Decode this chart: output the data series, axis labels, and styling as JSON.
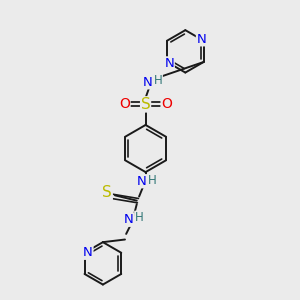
{
  "bg_color": "#ebebeb",
  "bond_color": "#1a1a1a",
  "bond_width": 1.4,
  "atom_colors": {
    "N": "#0000ee",
    "S": "#bbbb00",
    "O": "#ee0000",
    "H": "#337777",
    "C": "#1a1a1a"
  },
  "font_size": 8.5,
  "fig_size": [
    3.0,
    3.0
  ],
  "dpi": 100,
  "xlim": [
    0,
    10
  ],
  "ylim": [
    0,
    10
  ]
}
